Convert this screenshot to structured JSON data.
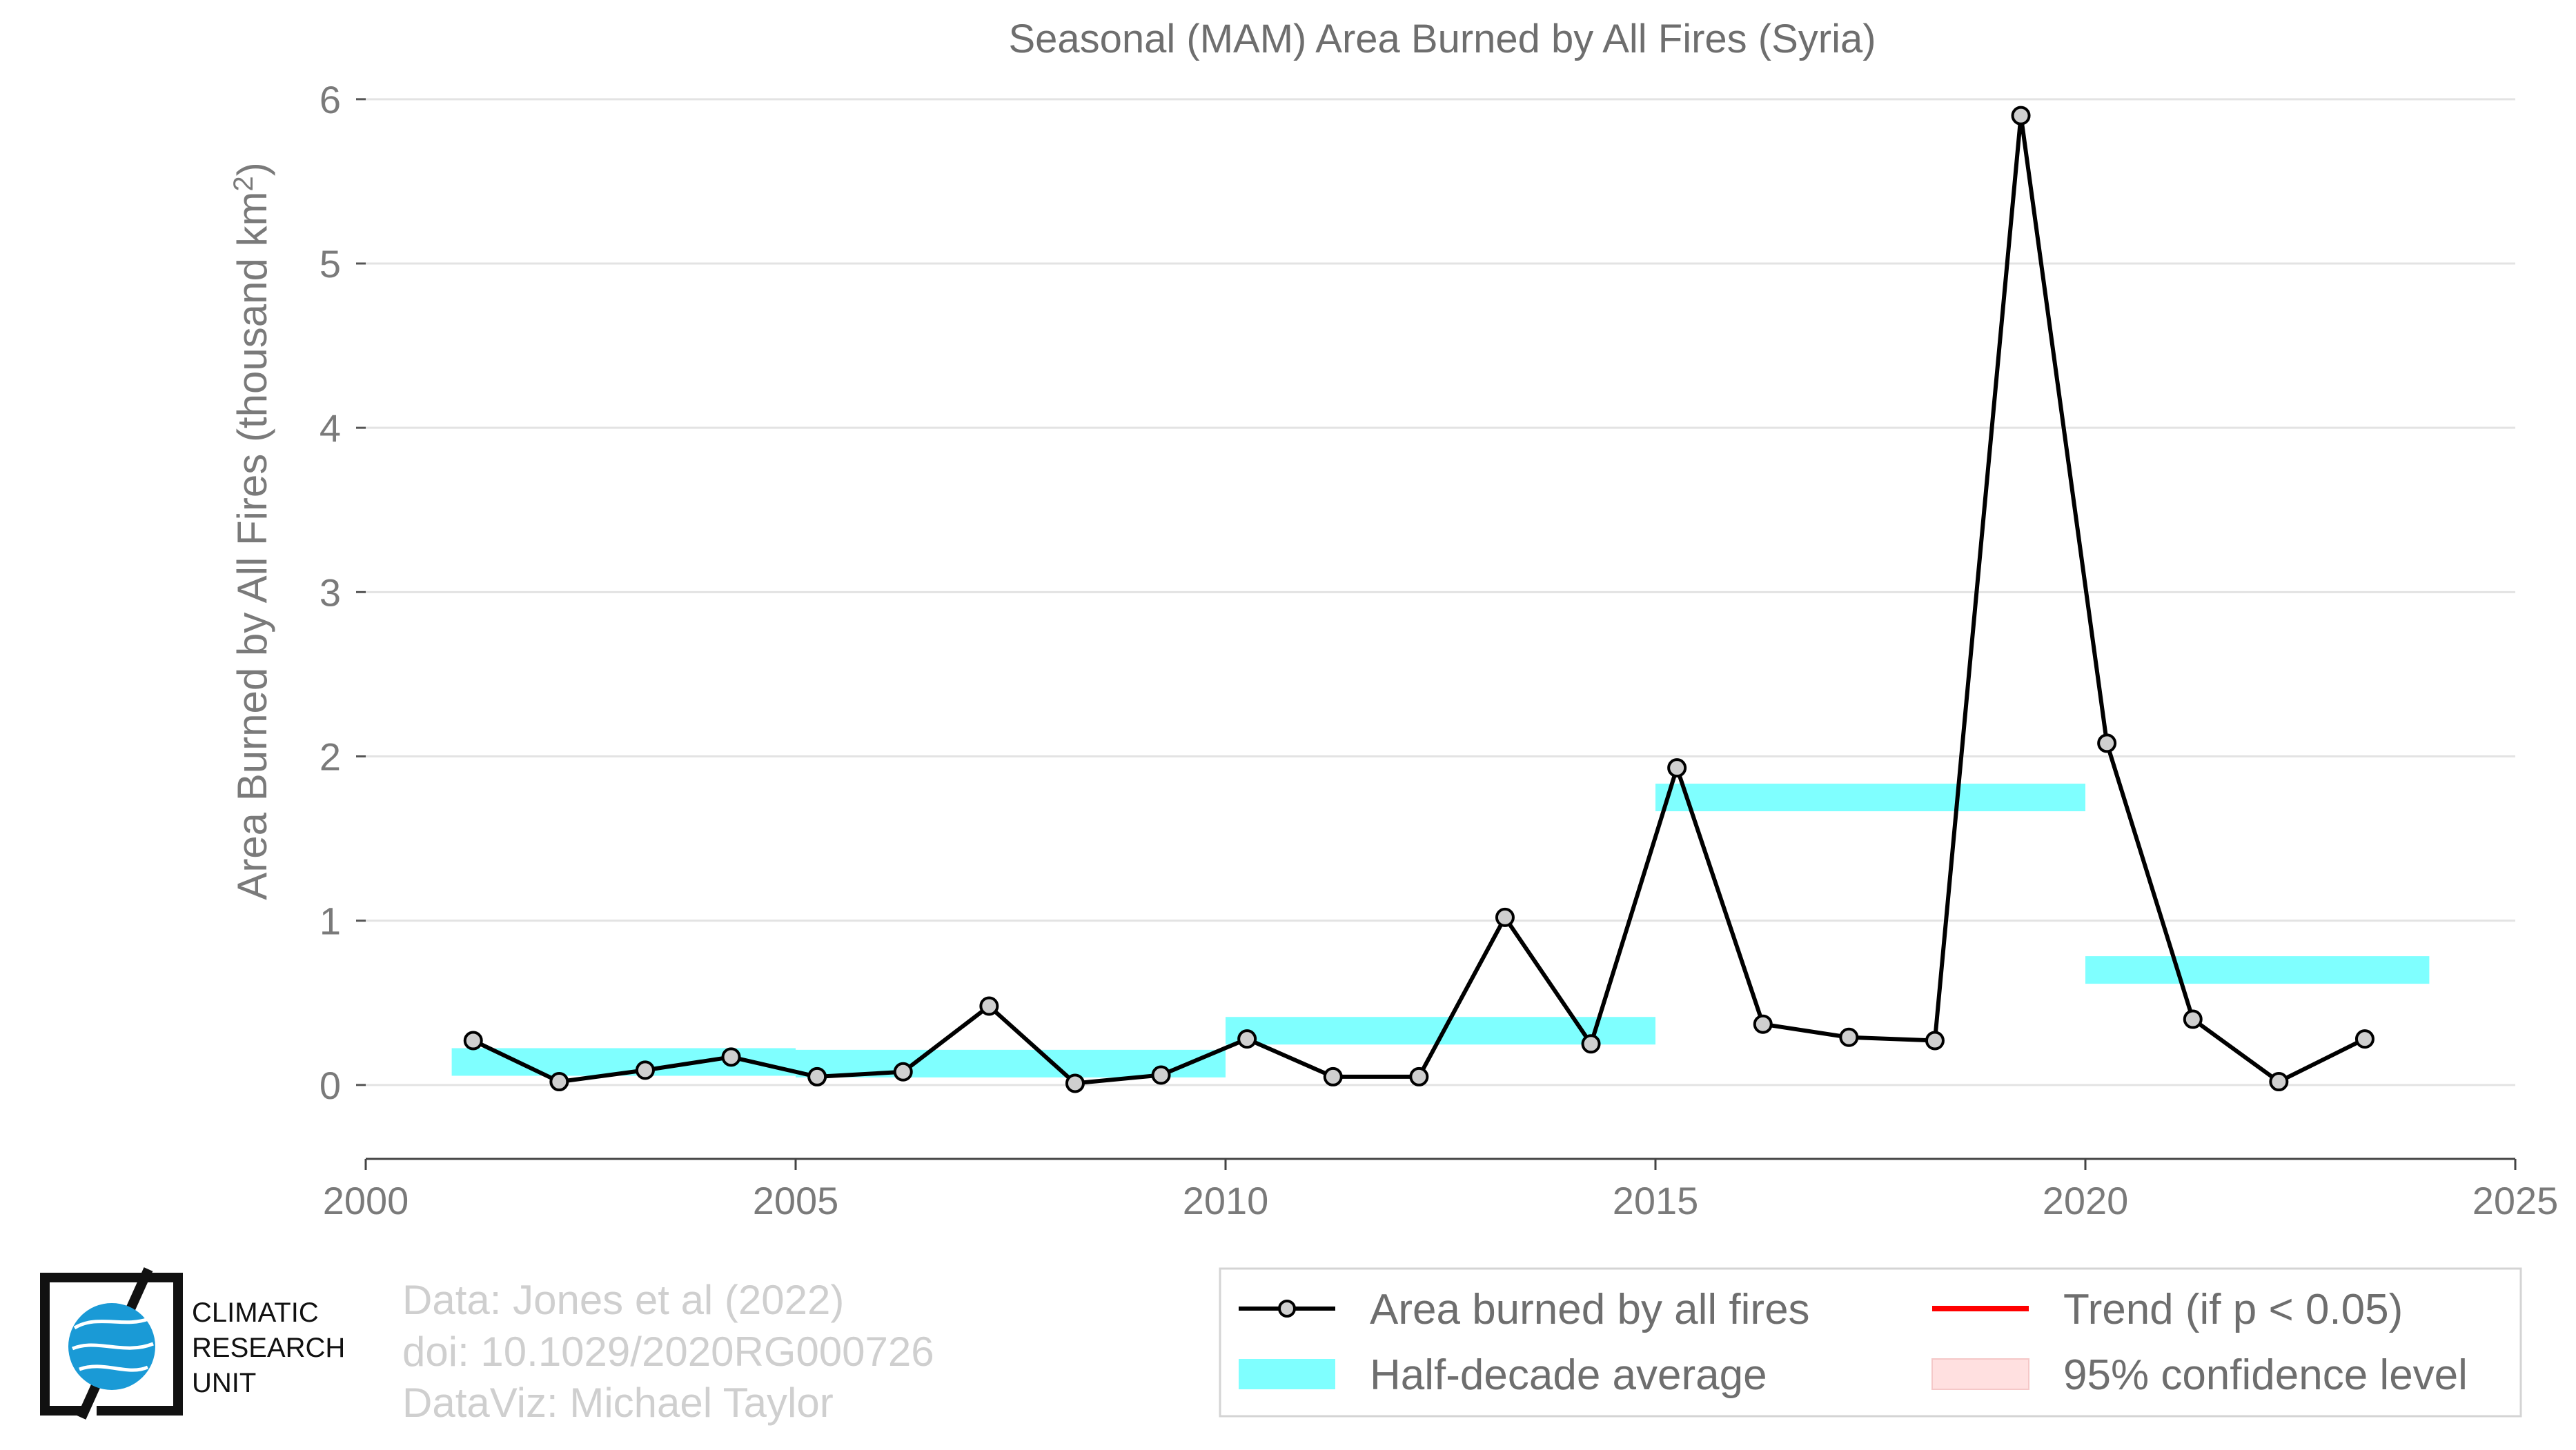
{
  "chart_data": {
    "type": "line",
    "title": "Seasonal (MAM) Area Burned by All Fires (Syria)",
    "ylabel_main": "Area Burned by All Fires (thousand km",
    "ylabel_sup": "2",
    "ylabel_close": ")",
    "xlim": [
      2000,
      2025
    ],
    "ylim": [
      -0.45,
      6.1
    ],
    "x_ticks": [
      2000,
      2005,
      2010,
      2015,
      2020,
      2025
    ],
    "y_ticks": [
      0,
      1,
      2,
      3,
      4,
      5,
      6
    ],
    "grid": "horizontal",
    "series": [
      {
        "name": "Area burned by all fires",
        "color": "#000000",
        "x": [
          2001.25,
          2002.25,
          2003.25,
          2004.25,
          2005.25,
          2006.25,
          2007.25,
          2008.25,
          2009.25,
          2010.25,
          2011.25,
          2012.25,
          2013.25,
          2014.25,
          2015.25,
          2016.25,
          2017.25,
          2018.25,
          2019.25,
          2020.25,
          2021.25,
          2022.25,
          2023.25
        ],
        "values": [
          0.27,
          0.02,
          0.09,
          0.17,
          0.05,
          0.08,
          0.48,
          0.01,
          0.06,
          0.28,
          0.05,
          0.05,
          1.02,
          0.25,
          1.93,
          0.37,
          0.29,
          0.27,
          5.9,
          2.08,
          0.4,
          0.02,
          0.28
        ]
      }
    ],
    "half_decade_averages": {
      "name": "Half-decade average",
      "color": "#7fffff",
      "segments": [
        {
          "x0": 2001,
          "x1": 2005,
          "value": 0.14
        },
        {
          "x0": 2005,
          "x1": 2010,
          "value": 0.13
        },
        {
          "x0": 2010,
          "x1": 2015,
          "value": 0.33
        },
        {
          "x0": 2015,
          "x1": 2020,
          "value": 1.75
        },
        {
          "x0": 2020,
          "x1": 2024,
          "value": 0.7
        }
      ]
    },
    "legend": {
      "placement": "bottom-right",
      "items": [
        {
          "label": "Area burned by all fires",
          "kind": "line-marker",
          "color": "#000000"
        },
        {
          "label": "Trend (if p < 0.05)",
          "kind": "line",
          "color": "#ff0000"
        },
        {
          "label": "Half-decade average",
          "kind": "band",
          "color": "#7fffff"
        },
        {
          "label": "95% confidence level",
          "kind": "patch",
          "color": "#ffe0e0"
        }
      ]
    }
  },
  "footer": {
    "line1": "Data: Jones et al (2022)",
    "line2": "doi: 10.1029/2020RG000726",
    "line3": "DataViz: Michael Taylor"
  },
  "logo": {
    "line1": "CLIMATIC",
    "line2": "RESEARCH",
    "line3": "UNIT"
  }
}
